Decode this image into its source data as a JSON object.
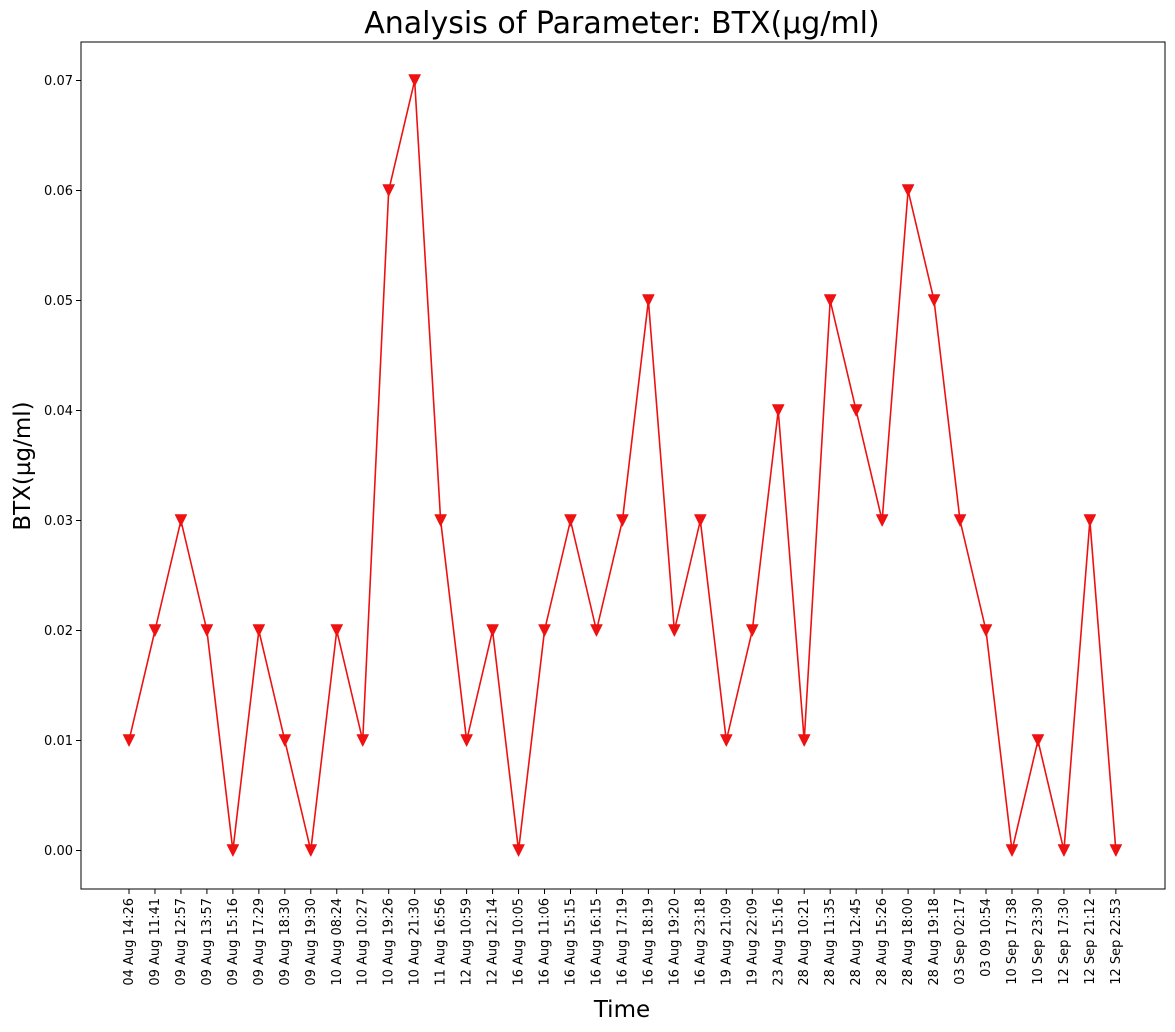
{
  "chart_data": {
    "type": "line",
    "title": "Analysis of Parameter: BTX(µg/ml)",
    "xlabel": "Time",
    "ylabel": "BTX(µg/ml)",
    "ylim": [
      -0.0035,
      0.0735
    ],
    "yticks": [
      "0.00",
      "0.01",
      "0.02",
      "0.03",
      "0.04",
      "0.05",
      "0.06",
      "0.07"
    ],
    "ytick_values": [
      0,
      0.01,
      0.02,
      0.03,
      0.04,
      0.05,
      0.06,
      0.07
    ],
    "grid": false,
    "legend": "none",
    "line_color": "#ee1111",
    "marker": "triangle-down",
    "categories": [
      "04 Aug 14:26",
      "09 Aug 11:41",
      "09 Aug 12:57",
      "09 Aug 13:57",
      "09 Aug 15:16",
      "09 Aug 17:29",
      "09 Aug 18:30",
      "09 Aug 19:30",
      "10 Aug 08:24",
      "10 Aug 10:27",
      "10 Aug 19:26",
      "10 Aug 21:30",
      "11 Aug 16:56",
      "12 Aug 10:59",
      "12 Aug 12:14",
      "16 Aug 10:05",
      "16 Aug 11:06",
      "16 Aug 15:15",
      "16 Aug 16:15",
      "16 Aug 17:19",
      "16 Aug 18:19",
      "16 Aug 19:20",
      "16 Aug 23:18",
      "19 Aug 21:09",
      "19 Aug 22:09",
      "23 Aug 15:16",
      "28 Aug 10:21",
      "28 Aug 11:35",
      "28 Aug 12:45",
      "28 Aug 15:26",
      "28 Aug 18:00",
      "28 Aug 19:18",
      "03 Sep 02:17",
      "03 09 10:54",
      "10 Sep 17:38",
      "10 Sep 23:30",
      "12 Sep 17:30",
      "12 Sep 21:12",
      "12 Sep 22:53"
    ],
    "values": [
      0.01,
      0.02,
      0.03,
      0.02,
      0.0,
      0.02,
      0.01,
      0.0,
      0.02,
      0.01,
      0.06,
      0.07,
      0.03,
      0.01,
      0.02,
      0.0,
      0.02,
      0.03,
      0.02,
      0.03,
      0.05,
      0.02,
      0.03,
      0.01,
      0.02,
      0.04,
      0.01,
      0.05,
      0.04,
      0.03,
      0.06,
      0.05,
      0.03,
      0.02,
      0.0,
      0.01,
      0.0,
      0.03,
      0.0
    ]
  }
}
